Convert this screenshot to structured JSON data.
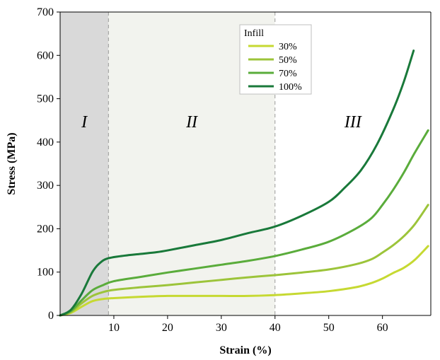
{
  "chart_data": {
    "type": "line",
    "xlabel": "Strain (%)",
    "ylabel": "Stress (MPa)",
    "xlim": [
      0,
      69
    ],
    "ylim": [
      0,
      700
    ],
    "x_ticks": [
      10,
      20,
      30,
      40,
      50,
      60
    ],
    "y_ticks": [
      0,
      100,
      200,
      300,
      400,
      500,
      600,
      700
    ],
    "grid": false,
    "legend": {
      "title": "Infill",
      "position": "top-center"
    },
    "regions": [
      {
        "label": "I",
        "x_start": 0,
        "x_end": 9,
        "fill": "#d9d9d9"
      },
      {
        "label": "II",
        "x_start": 9,
        "x_end": 40,
        "fill": "#f2f3ee"
      },
      {
        "label": "III",
        "x_start": 40,
        "x_end": 69,
        "fill": "#ffffff"
      }
    ],
    "series": [
      {
        "name": "30%",
        "color": "#c6d932",
        "points": [
          [
            0,
            0
          ],
          [
            2,
            6
          ],
          [
            4,
            20
          ],
          [
            6,
            33
          ],
          [
            8,
            38
          ],
          [
            10,
            40
          ],
          [
            15,
            43
          ],
          [
            20,
            45
          ],
          [
            25,
            45
          ],
          [
            30,
            45
          ],
          [
            35,
            45
          ],
          [
            40,
            47
          ],
          [
            45,
            51
          ],
          [
            50,
            56
          ],
          [
            55,
            65
          ],
          [
            58,
            75
          ],
          [
            60,
            85
          ],
          [
            62,
            98
          ],
          [
            64,
            110
          ],
          [
            66,
            128
          ],
          [
            68.5,
            160
          ]
        ]
      },
      {
        "name": "50%",
        "color": "#9cc43a",
        "points": [
          [
            0,
            0
          ],
          [
            2,
            8
          ],
          [
            4,
            28
          ],
          [
            6,
            45
          ],
          [
            8,
            54
          ],
          [
            10,
            59
          ],
          [
            15,
            65
          ],
          [
            20,
            70
          ],
          [
            25,
            76
          ],
          [
            30,
            82
          ],
          [
            35,
            88
          ],
          [
            40,
            93
          ],
          [
            45,
            99
          ],
          [
            50,
            106
          ],
          [
            55,
            118
          ],
          [
            58,
            130
          ],
          [
            60,
            145
          ],
          [
            62,
            162
          ],
          [
            64,
            183
          ],
          [
            66,
            210
          ],
          [
            68.5,
            255
          ]
        ]
      },
      {
        "name": "70%",
        "color": "#5aac3b",
        "points": [
          [
            0,
            0
          ],
          [
            2,
            10
          ],
          [
            4,
            35
          ],
          [
            6,
            58
          ],
          [
            8,
            70
          ],
          [
            10,
            79
          ],
          [
            15,
            89
          ],
          [
            20,
            99
          ],
          [
            25,
            108
          ],
          [
            30,
            117
          ],
          [
            35,
            126
          ],
          [
            40,
            137
          ],
          [
            45,
            152
          ],
          [
            50,
            170
          ],
          [
            55,
            200
          ],
          [
            58,
            225
          ],
          [
            60,
            255
          ],
          [
            62,
            290
          ],
          [
            64,
            330
          ],
          [
            66,
            375
          ],
          [
            68.5,
            427
          ]
        ]
      },
      {
        "name": "100%",
        "color": "#19793a",
        "points": [
          [
            0,
            0
          ],
          [
            2,
            13
          ],
          [
            4,
            50
          ],
          [
            6,
            100
          ],
          [
            7.5,
            122
          ],
          [
            9,
            132
          ],
          [
            12,
            138
          ],
          [
            15,
            142
          ],
          [
            18,
            146
          ],
          [
            20,
            150
          ],
          [
            25,
            162
          ],
          [
            30,
            174
          ],
          [
            35,
            190
          ],
          [
            40,
            205
          ],
          [
            45,
            230
          ],
          [
            50,
            262
          ],
          [
            53,
            295
          ],
          [
            56,
            335
          ],
          [
            59,
            395
          ],
          [
            62,
            475
          ],
          [
            64,
            540
          ],
          [
            65.8,
            611
          ]
        ]
      }
    ]
  }
}
